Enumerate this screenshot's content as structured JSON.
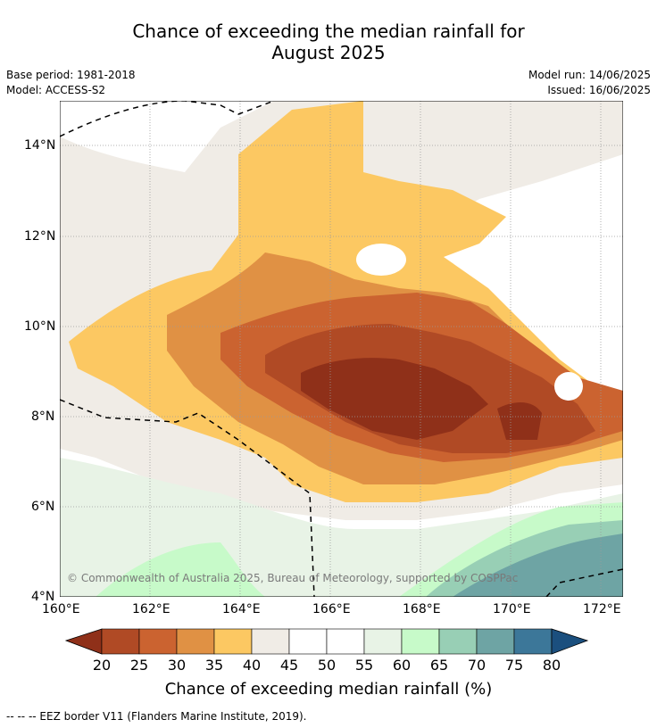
{
  "title_line1": "Chance of exceeding the median rainfall for",
  "title_line2": "August 2025",
  "base_period": "Base period: 1981-2018",
  "model": "Model: ACCESS-S2",
  "model_run": "Model run: 14/06/2025",
  "issued": "Issued: 16/06/2025",
  "copyright": "© Commonwealth of Australia 2025, Bureau of Meteorology, supported by COSPPac",
  "x_ticks": [
    "160°E",
    "162°E",
    "164°E",
    "166°E",
    "168°E",
    "170°E",
    "172°E"
  ],
  "y_ticks": [
    "14°N",
    "12°N",
    "10°N",
    "8°N",
    "6°N",
    "4°N"
  ],
  "colorbar": {
    "title": "Chance of exceeding median rainfall (%)",
    "labels": [
      "20",
      "25",
      "30",
      "35",
      "40",
      "45",
      "50",
      "55",
      "60",
      "65",
      "70",
      "75",
      "80"
    ],
    "colors": [
      "#8f3019",
      "#b04a25",
      "#cb6330",
      "#e09144",
      "#fcc862",
      "#f0ece6",
      "#ffffff",
      "#ffffff",
      "#e8f3e6",
      "#c7fac9",
      "#98cfb5",
      "#6ea4a4",
      "#3c7799",
      "#1b4f7e"
    ]
  },
  "footnote": "--  --  -- EEZ border V11 (Flanders Marine Institute, 2019)."
}
